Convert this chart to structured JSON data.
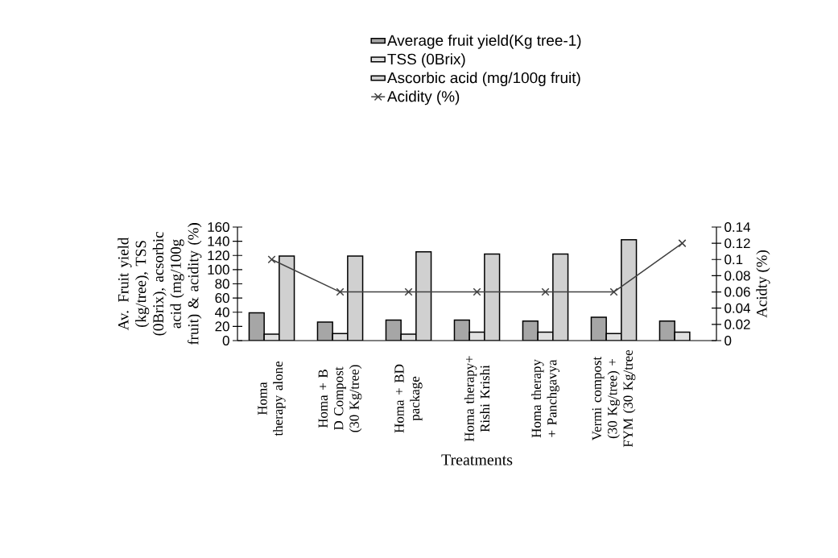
{
  "chart_data": {
    "type": "bar",
    "xlabel": "Treatments",
    "ylabel": "Av. Fruit yield (kg/tree), TSS (0Brix), acsorbic acid (mg/100g fruit) & acidity (%)",
    "y2label": "Acidty (%)",
    "categories": [
      "Homa therapy alone",
      "Homa + B D Compost  (30 Kg/tree)",
      "Homa + BD package",
      "Homa therapy+ Rishi Krishi",
      "Homa therapy + Panchgavya",
      "Vermi compost (30 Kg/tree) + FYM (30 Kg/tree",
      null
    ],
    "series": [
      {
        "name": "Average fruit yield(Kg tree-1)",
        "color": "#a6a6a6",
        "values": [
          39,
          26,
          29,
          29,
          27.5,
          33,
          27.5
        ]
      },
      {
        "name": "TSS (0Brix)",
        "color": "#e0e0e0",
        "values": [
          9,
          10,
          9,
          12,
          12,
          10,
          12
        ]
      },
      {
        "name": "Ascorbic acid (mg/100g fruit)",
        "color": "#d0d0d0",
        "values": [
          119,
          119,
          125,
          122,
          122,
          142,
          null
        ]
      },
      {
        "name": "Acidity (%)",
        "type": "line",
        "axis": "y2",
        "marker": "cross",
        "color": "#404040",
        "values": [
          0.1,
          0.06,
          0.06,
          0.06,
          0.06,
          0.06,
          0.12
        ]
      }
    ],
    "ylim": [
      0,
      160
    ],
    "yticks": [
      0,
      20,
      40,
      60,
      80,
      100,
      120,
      140,
      160
    ],
    "y2lim": [
      0,
      0.14
    ],
    "y2ticks": [
      0,
      0.02,
      0.04,
      0.06,
      0.08,
      0.1,
      0.12,
      0.14
    ],
    "legend": "top",
    "grid": false
  }
}
